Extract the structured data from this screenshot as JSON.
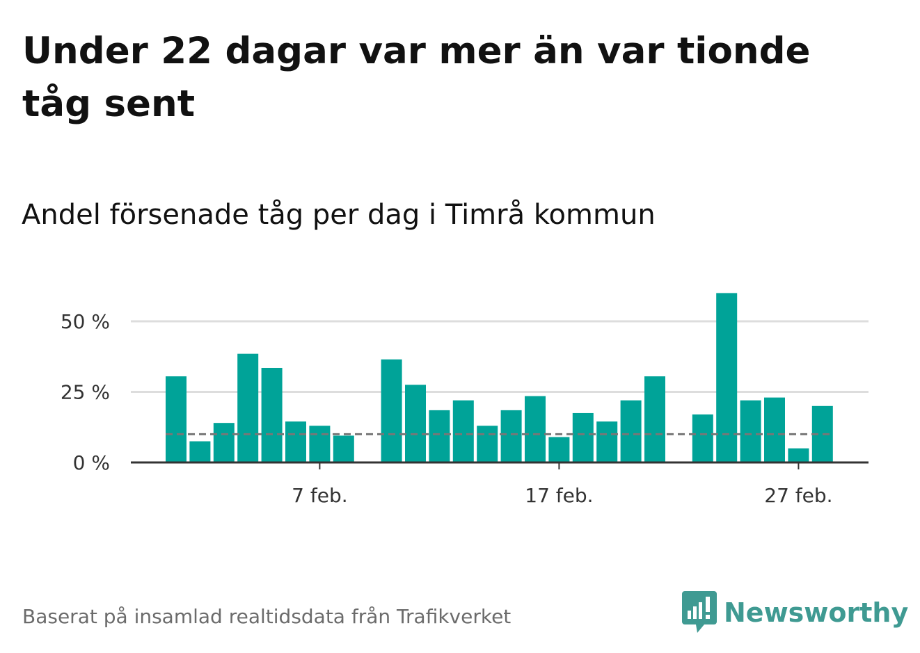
{
  "title": "Under 22 dagar var mer än var tionde tåg sent",
  "subtitle": "Andel försenade tåg per dag i Timrå kommun",
  "footer": "Baserat på insamlad realtidsdata från Trafikverket",
  "logo": {
    "text": "Newsworthy",
    "icon": "newsworthy-logo-icon",
    "color": "#3f9a92"
  },
  "colors": {
    "bar": "#00a398",
    "reference": "#777777",
    "grid": "#dddddd",
    "axis": "#333333"
  },
  "chart_data": {
    "type": "bar",
    "title": "Andel försenade tåg per dag i Timrå kommun",
    "x_start_day": 1,
    "x": [
      1,
      2,
      3,
      4,
      5,
      6,
      7,
      8,
      9,
      10,
      11,
      12,
      13,
      14,
      15,
      16,
      17,
      18,
      19,
      20,
      21,
      22,
      23,
      24,
      25,
      26,
      27,
      28
    ],
    "values": [
      30.5,
      7.5,
      14,
      38.5,
      33.5,
      14.5,
      13,
      9.5,
      null,
      36.5,
      27.5,
      18.5,
      22,
      13,
      18.5,
      23.5,
      9,
      17.5,
      14.5,
      22,
      30.5,
      null,
      17,
      60,
      22,
      23,
      5,
      20
    ],
    "reference_line": 10,
    "ylim": [
      0,
      60
    ],
    "y_ticks": [
      0,
      25,
      50
    ],
    "y_tick_labels": [
      "0 %",
      "25 %",
      "50 %"
    ],
    "x_ticks": [
      7,
      17,
      27
    ],
    "x_tick_labels": [
      "7 feb.",
      "17 feb.",
      "27 feb."
    ],
    "grid": true,
    "xlabel": "",
    "ylabel": ""
  }
}
